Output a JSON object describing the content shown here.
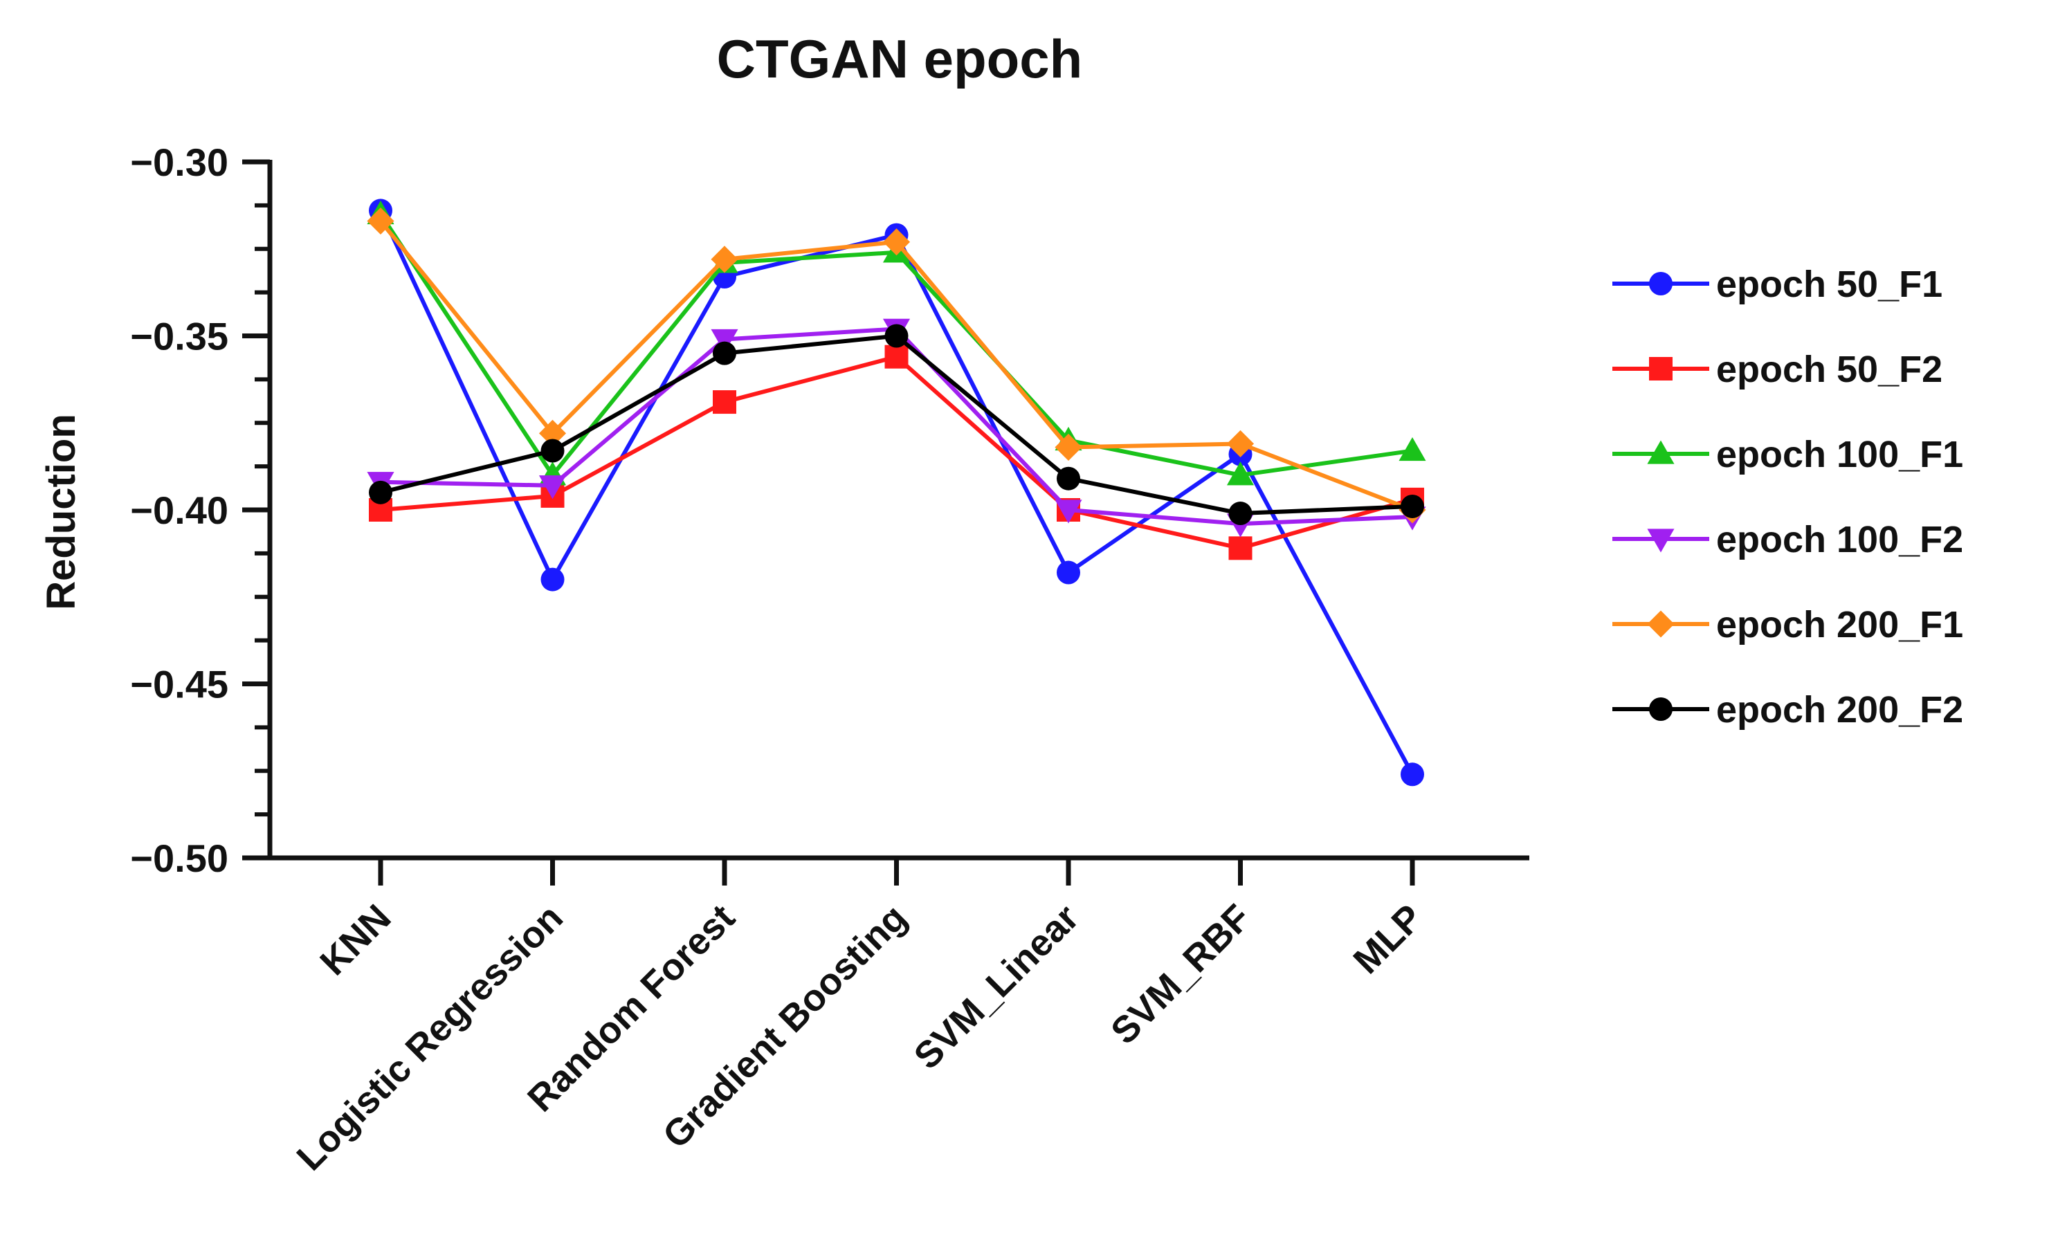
{
  "chart_data": {
    "type": "line",
    "title": "CTGAN epoch",
    "xlabel": "",
    "ylabel": "Reduction",
    "ylim": [
      -0.5,
      -0.3
    ],
    "yticks": [
      -0.3,
      -0.35,
      -0.4,
      -0.45,
      -0.5
    ],
    "ytick_labels": [
      "−0.30",
      "−0.35",
      "−0.40",
      "−0.45",
      "−0.50"
    ],
    "categories": [
      "KNN",
      "Logistic Regression",
      "Random Forest",
      "Gradient Boosting",
      "SVM_Linear",
      "SVM_RBF",
      "MLP"
    ],
    "legend_position": "right",
    "grid": false,
    "series": [
      {
        "name": "epoch 50_F1",
        "color": "#1a1aff",
        "marker": "circle",
        "values": [
          -0.314,
          -0.42,
          -0.333,
          -0.321,
          -0.418,
          -0.384,
          -0.476
        ]
      },
      {
        "name": "epoch 50_F2",
        "color": "#ff1a1a",
        "marker": "square",
        "values": [
          -0.4,
          -0.396,
          -0.369,
          -0.356,
          -0.4,
          -0.411,
          -0.397
        ]
      },
      {
        "name": "epoch 100_F1",
        "color": "#1ac21a",
        "marker": "triangle-up",
        "values": [
          -0.315,
          -0.39,
          -0.329,
          -0.326,
          -0.38,
          -0.39,
          -0.383
        ]
      },
      {
        "name": "epoch 100_F2",
        "color": "#a020f0",
        "marker": "triangle-down",
        "values": [
          -0.392,
          -0.393,
          -0.351,
          -0.348,
          -0.4,
          -0.404,
          -0.402
        ]
      },
      {
        "name": "epoch 200_F1",
        "color": "#ff8c1a",
        "marker": "diamond",
        "values": [
          -0.317,
          -0.378,
          -0.328,
          -0.323,
          -0.382,
          -0.381,
          -0.4
        ]
      },
      {
        "name": "epoch 200_F2",
        "color": "#000000",
        "marker": "circle",
        "values": [
          -0.395,
          -0.383,
          -0.355,
          -0.35,
          -0.391,
          -0.401,
          -0.399
        ]
      }
    ]
  }
}
